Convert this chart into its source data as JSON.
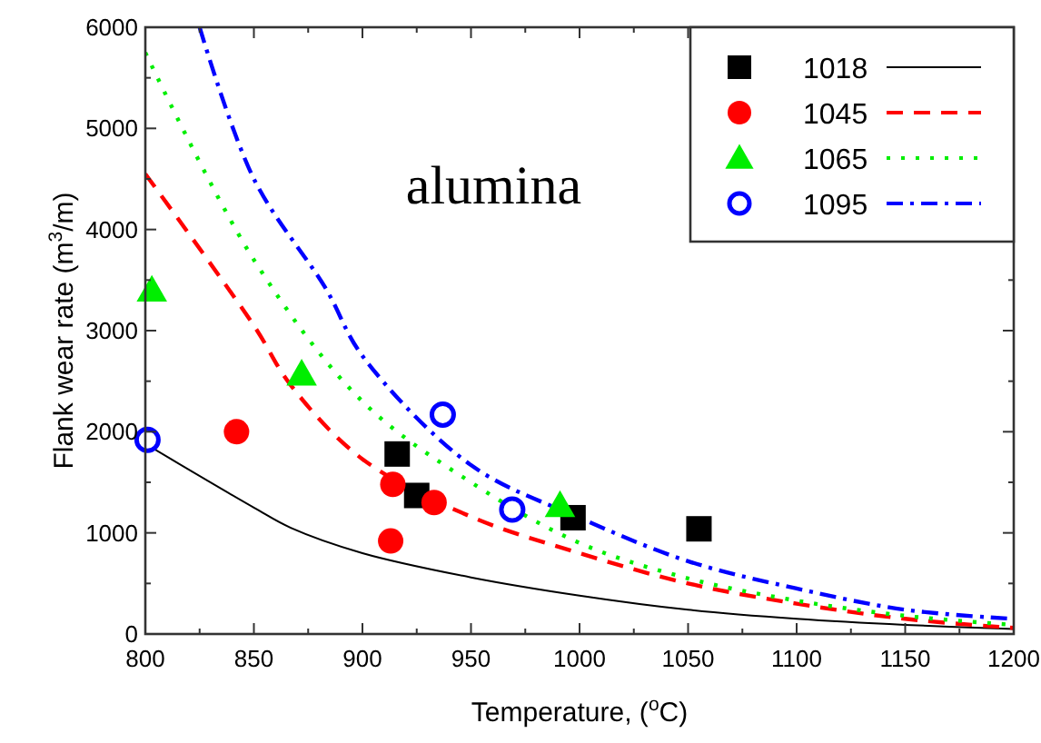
{
  "chart_data": {
    "type": "scatter",
    "xlabel": "Temperature, ($^{o}$C)",
    "ylabel": "Flank wear rate (m$^{3}$/m)",
    "annotations": [
      "alumina"
    ],
    "xlim": [
      800,
      1200
    ],
    "ylim": [
      0,
      6000
    ],
    "xticks": [
      800,
      850,
      900,
      950,
      1000,
      1050,
      1100,
      1150,
      1200
    ],
    "yticks": [
      0,
      1000,
      2000,
      3000,
      4000,
      5000,
      6000
    ],
    "grid": false,
    "legend": "top right",
    "series": [
      {
        "type": "scatter",
        "name": "1018",
        "color": "#000000",
        "marker": "square",
        "x": [
          916,
          925,
          997,
          1055
        ],
        "values": [
          1780,
          1370,
          1150,
          1040
        ]
      },
      {
        "type": "line",
        "color": "#000000",
        "line_style": "solid",
        "x": [
          800,
          850,
          867,
          900,
          950,
          1000,
          1050,
          1100,
          1150,
          1200
        ],
        "values": [
          1880,
          1250,
          1050,
          800,
          560,
          380,
          240,
          150,
          90,
          50
        ]
      },
      {
        "type": "scatter",
        "name": "1045",
        "color": "#ff0000",
        "marker": "circle",
        "x": [
          842,
          914,
          913,
          933
        ],
        "values": [
          2000,
          1480,
          920,
          1300
        ]
      },
      {
        "type": "line",
        "color": "#ff0000",
        "line_style": "dashed",
        "x": [
          800,
          850,
          867,
          900,
          950,
          1000,
          1050,
          1100,
          1150,
          1200
        ],
        "values": [
          4550,
          3050,
          2460,
          1730,
          1160,
          800,
          500,
          300,
          150,
          60
        ]
      },
      {
        "type": "scatter",
        "name": "1065",
        "color": "#00ee00",
        "marker": "triangle",
        "x": [
          803,
          872,
          991
        ],
        "values": [
          3400,
          2570,
          1270
        ]
      },
      {
        "type": "line",
        "color": "#00ee00",
        "line_style": "dotted",
        "x": [
          800,
          850,
          900,
          950,
          1000,
          1050,
          1100,
          1150,
          1200
        ],
        "values": [
          5750,
          3700,
          2300,
          1500,
          900,
          550,
          330,
          180,
          90
        ]
      },
      {
        "type": "scatter",
        "name": "1095",
        "color": "#0000ff",
        "marker": "circle-open",
        "x": [
          801,
          937,
          969
        ],
        "values": [
          1920,
          2170,
          1230
        ]
      },
      {
        "type": "line",
        "color": "#0000ff",
        "line_style": "dashdot",
        "x": [
          825,
          850,
          883,
          900,
          950,
          1000,
          1050,
          1100,
          1150,
          1200
        ],
        "values": [
          6000,
          4500,
          3420,
          2750,
          1670,
          1150,
          720,
          450,
          240,
          150
        ]
      }
    ]
  }
}
